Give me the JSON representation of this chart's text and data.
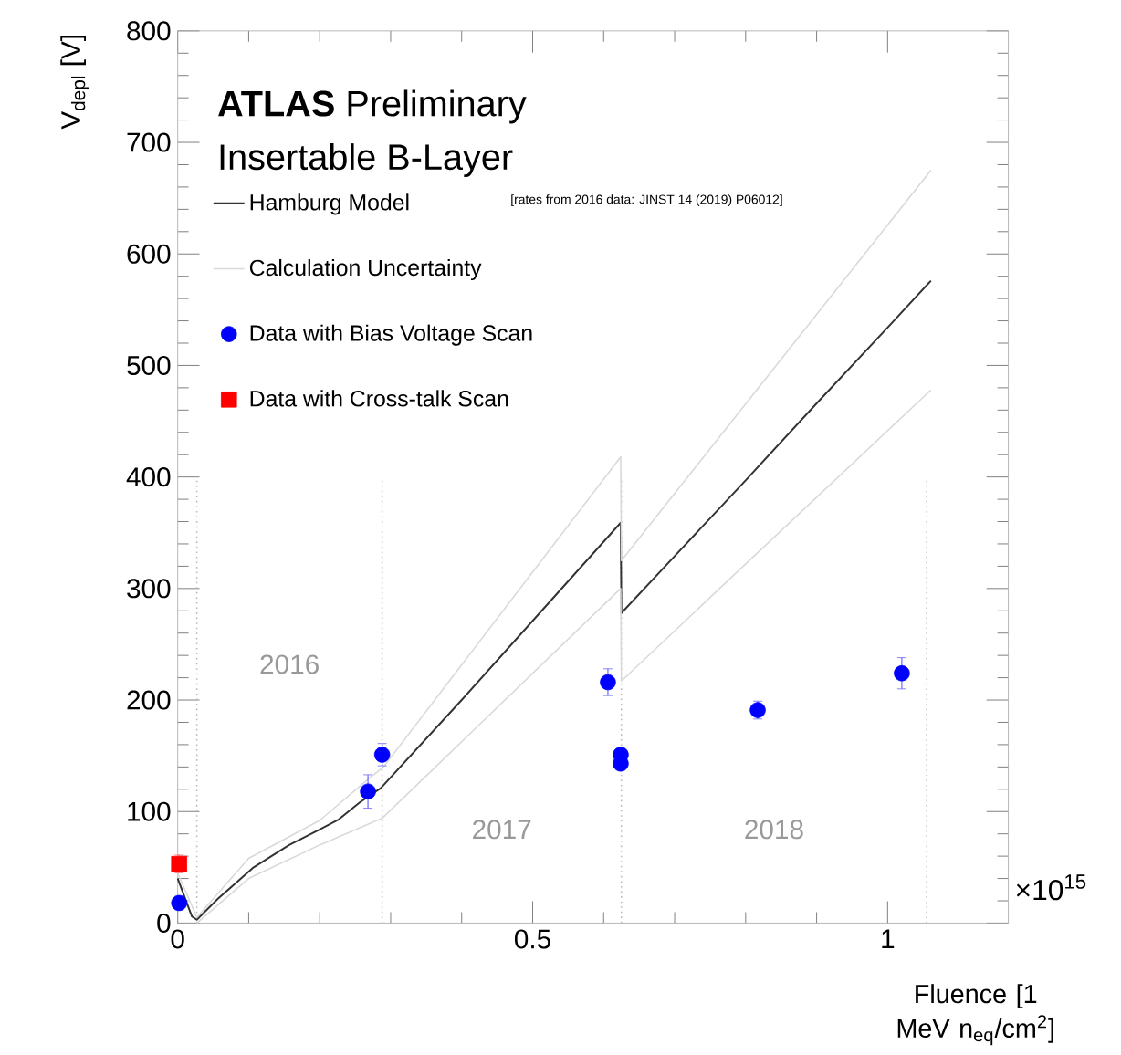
{
  "chart_data": {
    "type": "line",
    "title": "**ATLAS** Preliminary",
    "subtitle": "Insertable B-Layer",
    "xlabel": "Fluence [1 MeV n$_{eq}$/cm$^{2}$]",
    "ylabel": "V$_{depl}$ [V]",
    "xlim": [
      0,
      1.17
    ],
    "ylim": [
      0,
      800
    ],
    "xticks": [
      0,
      0.5,
      1
    ],
    "yticks": [
      0,
      100,
      200,
      300,
      400,
      500,
      600,
      700,
      800
    ],
    "legend": "top left",
    "grid": false,
    "series": [
      {
        "name": "Hamburg Model",
        "color": "#333333",
        "marker": "none",
        "x": [
          0.0,
          0.02,
          0.027,
          0.057,
          0.107,
          0.157,
          0.197,
          0.227,
          0.256,
          0.286,
          0.4,
          0.5,
          0.624,
          0.625,
          0.7,
          0.8,
          0.9,
          1.0,
          1.061
        ],
        "values": [
          40,
          6,
          3,
          22,
          50,
          70,
          83,
          93,
          108,
          121,
          200,
          271,
          359,
          278,
          329,
          397,
          466,
          534,
          576
        ]
      },
      {
        "name": "Calculation Uncertainty",
        "color": "#d9d9d9",
        "marker": "none",
        "x": [
          0.0,
          0.027,
          0.1,
          0.2,
          0.27,
          0.29,
          0.624,
          0.625,
          1.061
        ],
        "values": [
          45,
          5,
          58,
          92,
          130,
          140,
          418,
          325,
          675
        ]
      },
      {
        "color": "#d9d9d9",
        "marker": "none",
        "x": [
          0.027,
          0.1,
          0.2,
          0.288,
          0.624,
          0.625,
          0.785,
          1.061
        ],
        "values": [
          0,
          40,
          70,
          94,
          300,
          217,
          313,
          478
        ]
      },
      {
        "name": "Data with Bias Voltage Scan",
        "type": "scatter",
        "color": "#0000ff",
        "marker": "circle",
        "x": [
          0.002,
          0.268,
          0.288,
          0.606,
          0.624,
          0.624,
          0.817,
          1.02
        ],
        "values": [
          18,
          118,
          151,
          216,
          151,
          143,
          191,
          224
        ],
        "errors": [
          6,
          15,
          10,
          12,
          3,
          3,
          8,
          14
        ]
      },
      {
        "name": "Data with Cross-talk Scan",
        "type": "scatter",
        "color": "#ff0000",
        "marker": "square",
        "x": [
          0.002
        ],
        "values": [
          53
        ],
        "errors": [
          8
        ]
      }
    ],
    "ref_lines": [
      {
        "axis": "x",
        "value": 0.027,
        "color": "#bbbbbb",
        "line_style": "dotted"
      },
      {
        "axis": "x",
        "value": 0.288,
        "color": "#bbbbbb",
        "line_style": "dotted"
      },
      {
        "axis": "x",
        "value": 0.625,
        "color": "#bbbbbb",
        "line_style": "dotted"
      },
      {
        "axis": "x",
        "value": 1.055,
        "color": "#bbbbbb",
        "line_style": "dotted"
      }
    ],
    "annotations": [
      "[rates from 2016 data: JINST 14 (2019) P06012]",
      "×10$^{15}$",
      "2016",
      "2017",
      "2018"
    ]
  }
}
